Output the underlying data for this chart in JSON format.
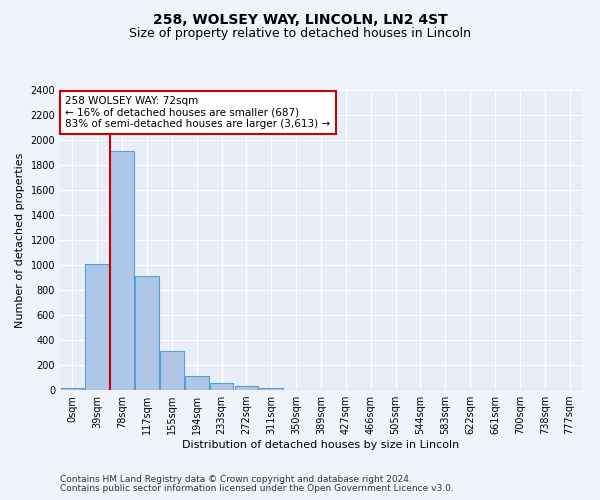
{
  "title_line1": "258, WOLSEY WAY, LINCOLN, LN2 4ST",
  "title_line2": "Size of property relative to detached houses in Lincoln",
  "xlabel": "Distribution of detached houses by size in Lincoln",
  "ylabel": "Number of detached properties",
  "bar_labels": [
    "0sqm",
    "39sqm",
    "78sqm",
    "117sqm",
    "155sqm",
    "194sqm",
    "233sqm",
    "272sqm",
    "311sqm",
    "350sqm",
    "389sqm",
    "427sqm",
    "466sqm",
    "505sqm",
    "544sqm",
    "583sqm",
    "622sqm",
    "661sqm",
    "700sqm",
    "738sqm",
    "777sqm"
  ],
  "bar_values": [
    20,
    1010,
    1910,
    915,
    315,
    110,
    55,
    35,
    20,
    0,
    0,
    0,
    0,
    0,
    0,
    0,
    0,
    0,
    0,
    0,
    0
  ],
  "bar_color": "#aec6e8",
  "bar_edge_color": "#5a9fd4",
  "ylim": [
    0,
    2400
  ],
  "yticks": [
    0,
    200,
    400,
    600,
    800,
    1000,
    1200,
    1400,
    1600,
    1800,
    2000,
    2200,
    2400
  ],
  "vline_x_idx": 2,
  "vline_color": "#cc0000",
  "annotation_text": "258 WOLSEY WAY: 72sqm\n← 16% of detached houses are smaller (687)\n83% of semi-detached houses are larger (3,613) →",
  "annotation_box_color": "#cc0000",
  "footer_line1": "Contains HM Land Registry data © Crown copyright and database right 2024.",
  "footer_line2": "Contains public sector information licensed under the Open Government Licence v3.0.",
  "bg_color": "#f0f4fa",
  "plot_bg_color": "#e8eef8",
  "grid_color": "#ffffff",
  "title_fontsize": 10,
  "subtitle_fontsize": 9,
  "axis_label_fontsize": 8,
  "tick_fontsize": 7,
  "annotation_fontsize": 7.5,
  "footer_fontsize": 6.5
}
